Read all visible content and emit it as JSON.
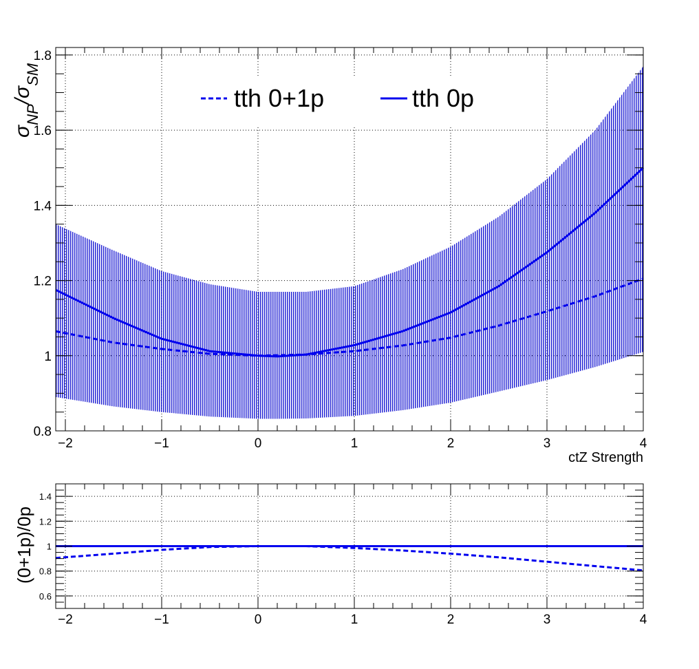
{
  "colors": {
    "line": "#0000ee",
    "band": "#0000cc",
    "axis": "#000000",
    "grid": "#000000"
  },
  "chart_data": [
    {
      "type": "line",
      "xlabel": "ctZ Strength",
      "ylabel": "σNP/σSM",
      "xlim": [
        -2.1,
        4.0
      ],
      "ylim": [
        0.8,
        1.82
      ],
      "grid": true,
      "legend_placement": "top-center",
      "x_ticks": [
        "−2",
        "−1",
        "0",
        "1",
        "2",
        "3",
        "4"
      ],
      "y_ticks": [
        "0.8",
        "1",
        "1.2",
        "1.4",
        "1.6",
        "1.8"
      ],
      "band": {
        "x": [
          -2.1,
          -1.5,
          -1.0,
          -0.5,
          0.0,
          0.2,
          0.5,
          1.0,
          1.5,
          2.0,
          2.5,
          3.0,
          3.5,
          4.0
        ],
        "lower": [
          0.89,
          0.865,
          0.85,
          0.838,
          0.832,
          0.832,
          0.833,
          0.84,
          0.855,
          0.875,
          0.905,
          0.935,
          0.97,
          1.01
        ],
        "upper": [
          1.35,
          1.28,
          1.225,
          1.19,
          1.17,
          1.17,
          1.17,
          1.185,
          1.23,
          1.29,
          1.37,
          1.47,
          1.6,
          1.77
        ]
      },
      "series": [
        {
          "name": "tth 0+1p",
          "style": "dashed",
          "x": [
            -2.1,
            -1.5,
            -1.0,
            -0.5,
            0.0,
            0.5,
            1.0,
            1.5,
            2.0,
            2.5,
            3.0,
            3.5,
            4.0
          ],
          "values": [
            1.065,
            1.035,
            1.018,
            1.005,
            1.0,
            1.003,
            1.012,
            1.027,
            1.048,
            1.08,
            1.118,
            1.158,
            1.205
          ]
        },
        {
          "name": "tth 0p",
          "style": "solid",
          "x": [
            -2.1,
            -1.5,
            -1.0,
            -0.5,
            0.0,
            0.2,
            0.5,
            1.0,
            1.5,
            2.0,
            2.5,
            3.0,
            3.5,
            4.0
          ],
          "values": [
            1.175,
            1.1,
            1.045,
            1.012,
            1.0,
            0.998,
            1.003,
            1.028,
            1.065,
            1.115,
            1.185,
            1.275,
            1.38,
            1.5
          ]
        }
      ]
    },
    {
      "type": "line",
      "xlabel": "",
      "ylabel": "(0+1p)/0p",
      "xlim": [
        -2.1,
        4.0
      ],
      "ylim": [
        0.5,
        1.5
      ],
      "grid": true,
      "x_ticks": [
        "−2",
        "−1",
        "0",
        "1",
        "2",
        "3",
        "4"
      ],
      "y_ticks": [
        "0.6",
        "0.8",
        "1",
        "1.2",
        "1.4"
      ],
      "series": [
        {
          "name": "",
          "style": "dashed",
          "x": [
            -2.1,
            -1.5,
            -1.0,
            -0.5,
            0.0,
            0.5,
            1.0,
            1.5,
            2.0,
            2.5,
            3.0,
            3.5,
            4.0
          ],
          "values": [
            0.905,
            0.94,
            0.97,
            0.993,
            1.0,
            1.0,
            0.985,
            0.965,
            0.94,
            0.91,
            0.875,
            0.84,
            0.805
          ]
        },
        {
          "name": "",
          "style": "solid",
          "x": [
            -2.1,
            4.0
          ],
          "values": [
            1.0,
            1.0
          ]
        }
      ]
    }
  ]
}
